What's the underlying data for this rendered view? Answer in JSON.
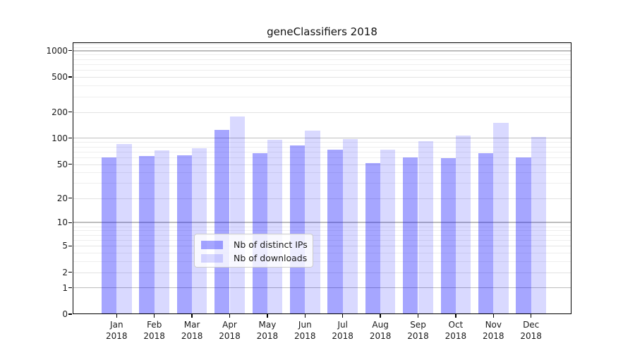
{
  "page": {
    "title": "geneClassifiers 2018"
  },
  "chart_data": {
    "type": "bar",
    "title": "geneClassifiers 2018",
    "categories": [
      "Jan 2018",
      "Feb 2018",
      "Mar 2018",
      "Apr 2018",
      "May 2018",
      "Jun 2018",
      "Jul 2018",
      "Aug 2018",
      "Sep 2018",
      "Oct 2018",
      "Nov 2018",
      "Dec 2018"
    ],
    "x_tick_line1": [
      "Jan",
      "Feb",
      "Mar",
      "Apr",
      "May",
      "Jun",
      "Jul",
      "Aug",
      "Sep",
      "Oct",
      "Nov",
      "Dec"
    ],
    "x_tick_line2": "2018",
    "series": [
      {
        "name": "Nb of distinct IPs",
        "color": "rgba(0,0,255,0.35)",
        "values": [
          60,
          62,
          64,
          124,
          67,
          82,
          74,
          52,
          60,
          59,
          67,
          60
        ]
      },
      {
        "name": "Nb of downloads",
        "color": "rgba(0,0,255,0.15)",
        "values": [
          86,
          73,
          76,
          176,
          95,
          123,
          97,
          74,
          93,
          108,
          149,
          104
        ]
      }
    ],
    "xlabel": "",
    "ylabel": "",
    "y_scale": "log1p",
    "y_ticks": [
      0,
      1,
      2,
      5,
      10,
      20,
      50,
      100,
      200,
      500,
      1000
    ],
    "ylim": [
      0,
      1244
    ],
    "grid": true,
    "legend_position": "lower center",
    "colors": {
      "grid_decade": "#bdbdbd",
      "grid_labeled": "#e3e3e3",
      "grid_minor": "#eeeeee",
      "spine": "#000000",
      "text": "#1a1a1a"
    }
  }
}
